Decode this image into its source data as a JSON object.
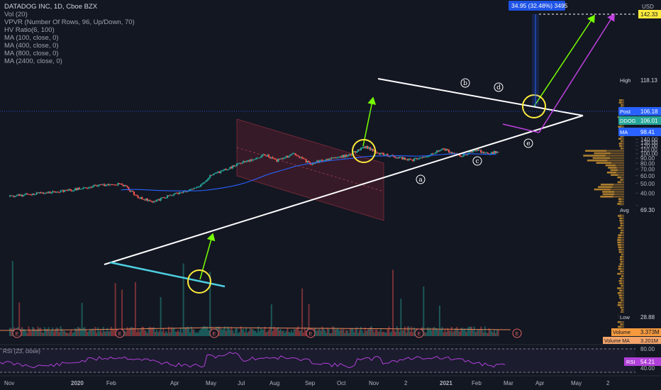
{
  "header": {
    "title": "DATADOG INC, 1D, Cboe BZX",
    "indicators": [
      "Vol (20)",
      "VPVR (Number Of Rows, 96, Up/Down, 70)",
      "HV Ratio(6, 100)",
      "MA (100, close, 0)",
      "MA (400, close, 0)",
      "MA (800, close, 0)",
      "MA (2400, close, 0)"
    ],
    "rsi_label": "RSI (23, close)"
  },
  "colors": {
    "background": "#131722",
    "up": "#26a69a",
    "down": "#ef5350",
    "trendline": "#ffffff",
    "cyan_line": "#4dd0e1",
    "green_arrow": "#76ff03",
    "purple_arrow": "#c040e0",
    "circle": "#ffeb3b",
    "ma": "#2962ff",
    "rsi": "#b040d8"
  },
  "chart_data": {
    "type": "candlestick",
    "title": "DATADOG INC, 1D, Cboe BZX",
    "ylim": [
      27,
      147
    ],
    "y_ticks": [
      30,
      40,
      50,
      60,
      70,
      80,
      90,
      100,
      110,
      120,
      130,
      140
    ],
    "y_tick_labels": [
      "",
      "40.00",
      "50.00",
      "60.00",
      "70.00",
      "80.00",
      "90.00",
      "100.00",
      "110.00",
      "120.00",
      "130.00",
      "140.00"
    ],
    "x_labels": [
      "Nov",
      "2020",
      "Feb",
      "Apr",
      "May",
      "Jul",
      "Aug",
      "Sep",
      "Oct",
      "Nov",
      "2",
      "2021",
      "Feb",
      "Mar",
      "Apr",
      "May",
      "2"
    ],
    "price_path": [
      {
        "month": 0,
        "price": 37
      },
      {
        "month": 1,
        "price": 40
      },
      {
        "month": 2,
        "price": 42
      },
      {
        "month": 3,
        "price": 47
      },
      {
        "month": 4,
        "price": 50
      },
      {
        "month": 4.6,
        "price": 36
      },
      {
        "month": 5.2,
        "price": 33
      },
      {
        "month": 6,
        "price": 40
      },
      {
        "month": 6.8,
        "price": 46
      },
      {
        "month": 7.2,
        "price": 60
      },
      {
        "month": 7.8,
        "price": 70
      },
      {
        "month": 8.3,
        "price": 80
      },
      {
        "month": 9.2,
        "price": 98
      },
      {
        "month": 9.6,
        "price": 85
      },
      {
        "month": 10.2,
        "price": 99
      },
      {
        "month": 10.8,
        "price": 79
      },
      {
        "month": 11.4,
        "price": 88
      },
      {
        "month": 12.2,
        "price": 97
      },
      {
        "month": 12.8,
        "price": 118
      },
      {
        "month": 13.3,
        "price": 100
      },
      {
        "month": 13.9,
        "price": 92
      },
      {
        "month": 14.5,
        "price": 86
      },
      {
        "month": 15.1,
        "price": 98
      },
      {
        "month": 15.6,
        "price": 111
      },
      {
        "month": 16.2,
        "price": 95
      },
      {
        "month": 16.8,
        "price": 108
      },
      {
        "month": 17.2,
        "price": 100
      },
      {
        "month": 17.6,
        "price": 106
      }
    ],
    "price_labels": {
      "usd": "USD",
      "measure": "34.95 (32.48%) 3495",
      "target": "142.33",
      "high_label": "High",
      "high": "118.13",
      "post_label": "Post",
      "post": "106.18",
      "ddog_label": "DDOG",
      "ddog": "106.01",
      "ma_label": "MA",
      "ma": "98.41",
      "avg_label": "Avg",
      "avg": "69.30",
      "low_label": "Low",
      "low": "28.88",
      "volume_label": "Volume",
      "volume": "3.373M",
      "volume_ma_label": "Volume MA",
      "volume_ma": "3.201M",
      "rsi_label": "RSI",
      "rsi": "54.21",
      "rsi_80": "80.00",
      "rsi_40": "40.00"
    },
    "wave_labels": [
      "a",
      "b",
      "c",
      "d",
      "e"
    ],
    "earnings_marker": "E"
  }
}
